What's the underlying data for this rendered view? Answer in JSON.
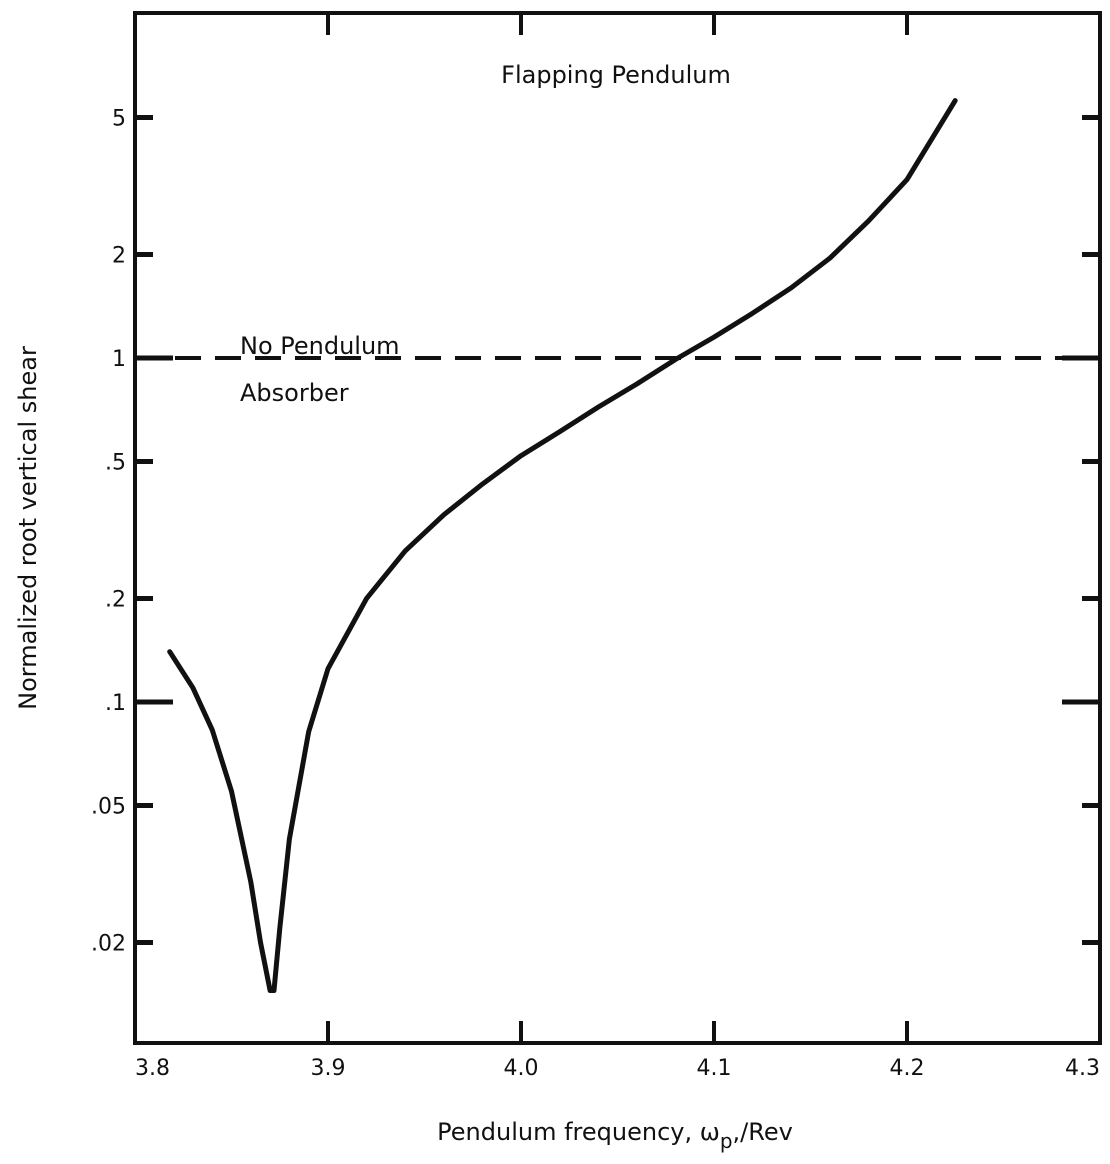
{
  "chart_data": {
    "type": "line",
    "title": "Flapping Pendulum",
    "xlabel": "Pendulum frequency, ωp,/Rev",
    "xlabel_parts": {
      "main": "Pendulum frequency, ω",
      "sub": "p",
      "tail": ",/Rev"
    },
    "ylabel": "Normalized root vertical shear",
    "x_scale": "linear",
    "y_scale": "log",
    "xlim": [
      3.8,
      4.3
    ],
    "ylim": [
      0.011,
      10
    ],
    "grid": false,
    "x_ticks": [
      {
        "value": 3.8,
        "label": "3.8"
      },
      {
        "value": 3.9,
        "label": "3.9"
      },
      {
        "value": 4.0,
        "label": "4.0"
      },
      {
        "value": 4.1,
        "label": "4.1"
      },
      {
        "value": 4.2,
        "label": "4.2"
      },
      {
        "value": 4.3,
        "label": "4.3"
      }
    ],
    "y_ticks": [
      {
        "value": 5,
        "label": "5"
      },
      {
        "value": 2,
        "label": "2"
      },
      {
        "value": 1,
        "label": "1"
      },
      {
        "value": 0.5,
        "label": ".5"
      },
      {
        "value": 0.2,
        "label": ".2"
      },
      {
        "value": 0.1,
        "label": ".1"
      },
      {
        "value": 0.05,
        "label": ".05"
      },
      {
        "value": 0.02,
        "label": ".02"
      }
    ],
    "series": [
      {
        "style": "solid",
        "x": [
          3.818,
          3.83,
          3.84,
          3.85,
          3.86,
          3.865,
          3.87,
          3.872,
          3.875,
          3.88,
          3.89,
          3.9,
          3.92,
          3.94,
          3.96,
          3.98,
          4.0,
          4.02,
          4.04,
          4.06,
          4.08,
          4.1,
          4.12,
          4.14,
          4.16,
          4.18,
          4.2,
          4.225
        ],
        "y": [
          0.14,
          0.11,
          0.083,
          0.055,
          0.03,
          0.02,
          0.0145,
          0.0145,
          0.022,
          0.04,
          0.082,
          0.125,
          0.2,
          0.275,
          0.35,
          0.43,
          0.52,
          0.61,
          0.72,
          0.84,
          0.99,
          1.15,
          1.35,
          1.6,
          1.95,
          2.5,
          3.3,
          5.6
        ]
      },
      {
        "style": "dashed",
        "x": [
          3.8,
          4.3
        ],
        "y": [
          1.0,
          1.0
        ]
      }
    ],
    "annotations": [
      {
        "text": "No Pendulum"
      },
      {
        "text": "Absorber"
      }
    ]
  }
}
